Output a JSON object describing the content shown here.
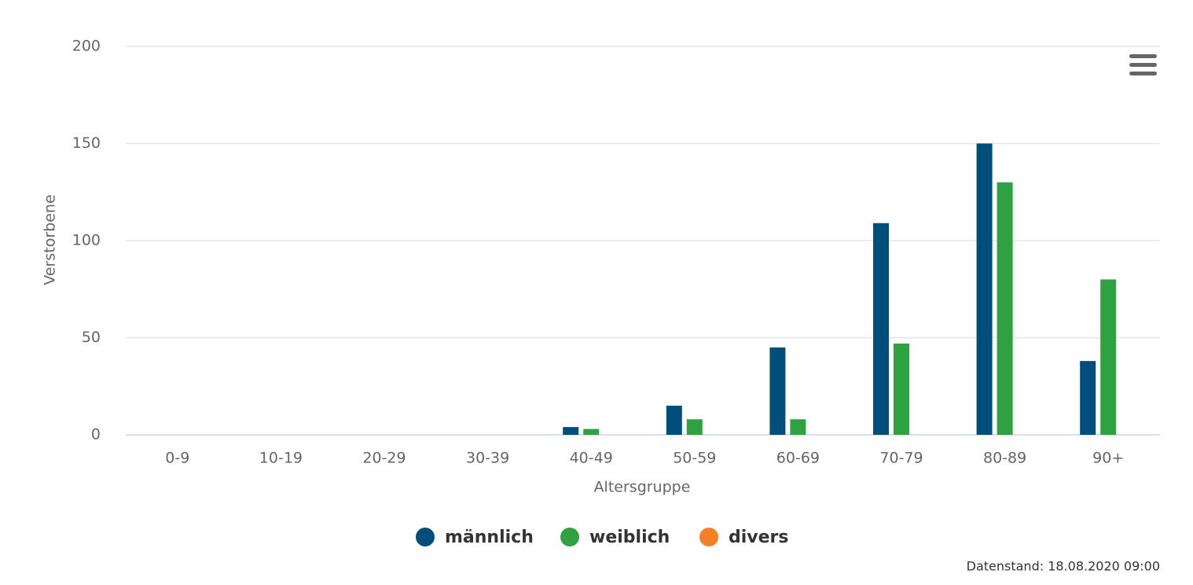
{
  "chart_data": {
    "type": "bar",
    "categories": [
      "0-9",
      "10-19",
      "20-29",
      "30-39",
      "40-49",
      "50-59",
      "60-69",
      "70-79",
      "80-89",
      "90+"
    ],
    "series": [
      {
        "name": "männlich",
        "color": "#004e7b",
        "values": [
          0,
          0,
          0,
          0,
          4,
          15,
          45,
          109,
          150,
          38
        ]
      },
      {
        "name": "weiblich",
        "color": "#2ea140",
        "values": [
          0,
          0,
          0,
          0,
          3,
          8,
          8,
          47,
          130,
          80
        ]
      },
      {
        "name": "divers",
        "color": "#f77f24",
        "values": [
          0,
          0,
          0,
          0,
          0,
          0,
          0,
          0,
          0,
          0
        ]
      }
    ],
    "x_label": "Altersgruppe",
    "y_label": "Verstorbene",
    "ylim": [
      0,
      200
    ],
    "yticks": [
      0,
      50,
      100,
      150,
      200
    ],
    "grid": true,
    "legend": "bottom",
    "footnote": "Datenstand: 18.08.2020 09:00"
  }
}
